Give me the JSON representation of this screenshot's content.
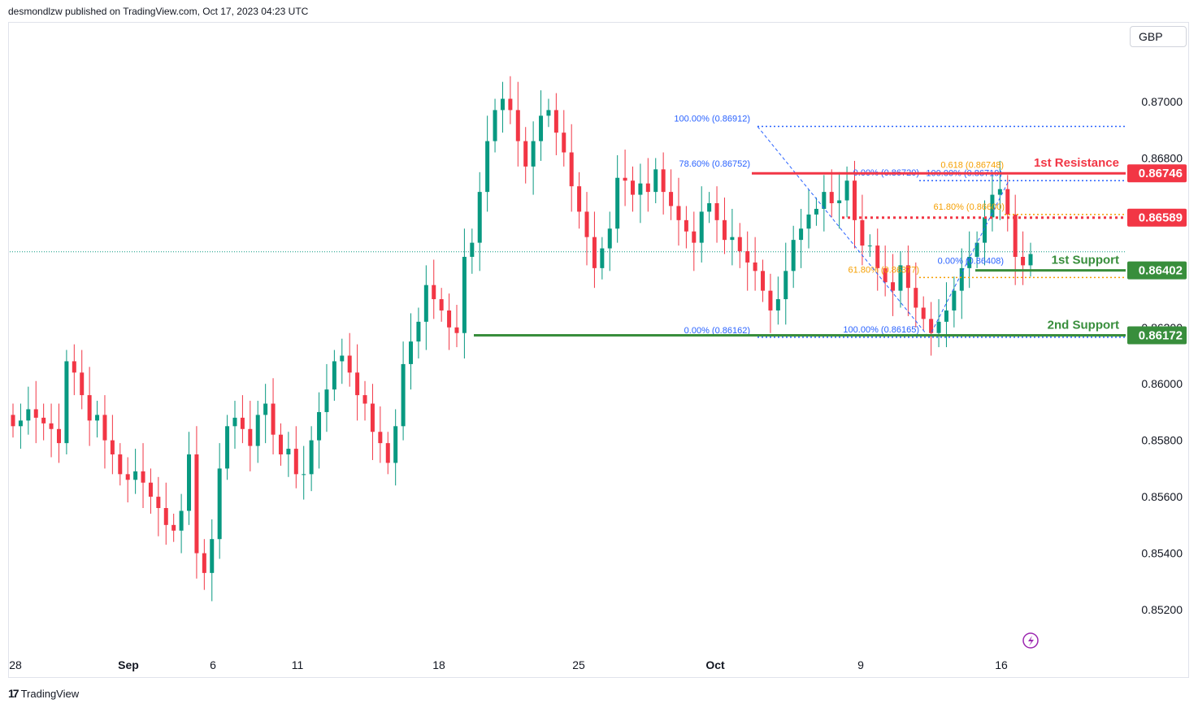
{
  "header": {
    "publisher_line": "desmondlzw published on TradingView.com, Oct 17, 2023 04:23 UTC"
  },
  "currency": "GBP",
  "footer": {
    "logo_text": "TradingView",
    "logo_icon": "tradingview-logo-icon"
  },
  "lightning_icon": "lightning-icon",
  "colors": {
    "up": "#089981",
    "down": "#f23645",
    "resistance": "#f23645",
    "support": "#388e3c",
    "fib_blue": "#2962ff",
    "fib_orange": "#f59f00",
    "text": "#131722"
  },
  "chart_data": {
    "type": "candlestick",
    "instrument_currency": "GBP",
    "ylim": [
      0.8512,
      0.8722
    ],
    "y_ticks": [
      {
        "label": "0.87000",
        "value": 0.87
      },
      {
        "label": "0.86800",
        "value": 0.868
      },
      {
        "label": "0.86600",
        "value": 0.866
      },
      {
        "label": "0.86400",
        "value": 0.864
      },
      {
        "label": "0.86200",
        "value": 0.862
      },
      {
        "label": "0.86000",
        "value": 0.86
      },
      {
        "label": "0.85800",
        "value": 0.858
      },
      {
        "label": "0.85600",
        "value": 0.856
      },
      {
        "label": "0.85400",
        "value": 0.854
      },
      {
        "label": "0.85200",
        "value": 0.852
      }
    ],
    "x_ticks": [
      {
        "label": "28",
        "date": "2023-08-28",
        "bold": false
      },
      {
        "label": "Sep",
        "date": "2023-09-01",
        "bold": true
      },
      {
        "label": "6",
        "date": "2023-09-06",
        "bold": false
      },
      {
        "label": "11",
        "date": "2023-09-11",
        "bold": false
      },
      {
        "label": "18",
        "date": "2023-09-18",
        "bold": false
      },
      {
        "label": "25",
        "date": "2023-09-25",
        "bold": false
      },
      {
        "label": "Oct",
        "date": "2023-10-02",
        "bold": true
      },
      {
        "label": "9",
        "date": "2023-10-09",
        "bold": false
      },
      {
        "label": "16",
        "date": "2023-10-16",
        "bold": false
      }
    ],
    "price_closes": [
      0.8585,
      0.8587,
      0.8591,
      0.8588,
      0.8586,
      0.8584,
      0.8579,
      0.8608,
      0.8604,
      0.8596,
      0.8587,
      0.8589,
      0.858,
      0.8575,
      0.8568,
      0.8566,
      0.8569,
      0.8565,
      0.856,
      0.8556,
      0.855,
      0.8548,
      0.8555,
      0.8575,
      0.854,
      0.8533,
      0.8545,
      0.857,
      0.8585,
      0.8588,
      0.8584,
      0.8578,
      0.8589,
      0.8593,
      0.8582,
      0.8575,
      0.8577,
      0.8568,
      0.8568,
      0.858,
      0.859,
      0.8598,
      0.8608,
      0.861,
      0.8604,
      0.8596,
      0.8593,
      0.8583,
      0.8579,
      0.8572,
      0.8585,
      0.8607,
      0.8615,
      0.8622,
      0.8635,
      0.863,
      0.8626,
      0.862,
      0.8618,
      0.8645,
      0.865,
      0.8668,
      0.8686,
      0.8697,
      0.8701,
      0.8697,
      0.8686,
      0.8677,
      0.8686,
      0.8695,
      0.8697,
      0.8689,
      0.8682,
      0.867,
      0.8661,
      0.8652,
      0.8641,
      0.8648,
      0.8655,
      0.8673,
      0.8672,
      0.8667,
      0.8671,
      0.8668,
      0.8676,
      0.8668,
      0.8663,
      0.8658,
      0.8654,
      0.865,
      0.8661,
      0.8664,
      0.8658,
      0.8651,
      0.8652,
      0.8647,
      0.8643,
      0.864,
      0.8633,
      0.8626,
      0.863,
      0.864,
      0.8651,
      0.8655,
      0.866,
      0.8662,
      0.8668,
      0.8664,
      0.8665,
      0.8672,
      0.8658,
      0.8649,
      0.8649,
      0.8641,
      0.8636,
      0.8633,
      0.8642,
      0.8634,
      0.8627,
      0.8623,
      0.8618,
      0.8622,
      0.8626,
      0.8633,
      0.8641,
      0.8645,
      0.865,
      0.8659,
      0.8667,
      0.8669,
      0.866,
      0.8645,
      0.8642,
      0.8646
    ],
    "current_price_line": 0.86468,
    "levels": [
      {
        "label": "1st Resistance",
        "value": 0.86746,
        "badge": "0.86746",
        "kind": "resistance"
      },
      {
        "label": "",
        "value": 0.86589,
        "badge": "0.86589",
        "kind": "resistance-dotted"
      },
      {
        "label": "1st Support",
        "value": 0.86402,
        "badge": "0.86402",
        "kind": "support"
      },
      {
        "label": "2nd Support",
        "value": 0.86172,
        "badge": "0.86172",
        "kind": "support"
      }
    ],
    "fib_annotations": [
      {
        "text": "100.00% (0.86912)",
        "value": 0.86912,
        "color": "blue"
      },
      {
        "text": "78.60% (0.86752)",
        "value": 0.86752,
        "color": "blue"
      },
      {
        "text": "0.618 (0.86748)",
        "value": 0.86748,
        "color": "orange"
      },
      {
        "text": "0.00% (0.86720)",
        "value": 0.8672,
        "color": "blue"
      },
      {
        "text": "100.00% (0.86719)",
        "value": 0.86719,
        "color": "blue"
      },
      {
        "text": "61.80% (0.86600)",
        "value": 0.866,
        "color": "orange"
      },
      {
        "text": "0.00% (0.86408)",
        "value": 0.86408,
        "color": "blue"
      },
      {
        "text": "61.80% (0.86377)",
        "value": 0.86377,
        "color": "orange"
      },
      {
        "text": "0.00% (0.86162)",
        "value": 0.86162,
        "color": "blue"
      },
      {
        "text": "100.00% (0.86165)",
        "value": 0.86165,
        "color": "blue"
      }
    ]
  }
}
